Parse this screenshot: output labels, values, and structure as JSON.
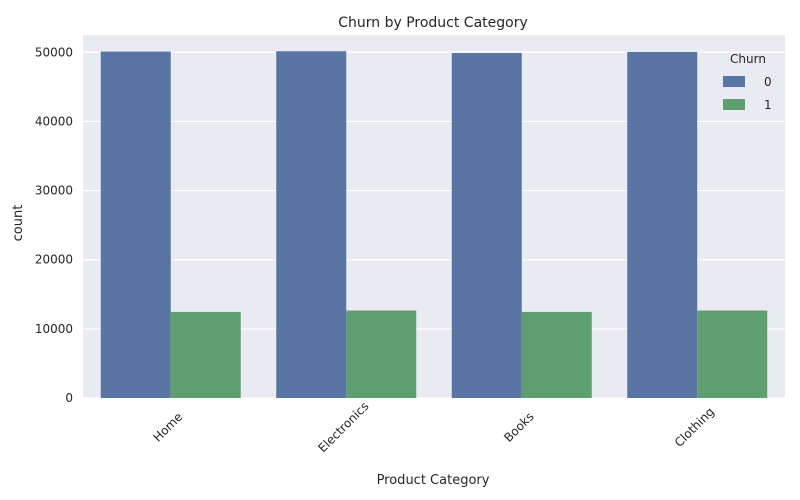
{
  "chart_data": {
    "type": "bar",
    "title": "Churn by Product Category",
    "xlabel": "Product Category",
    "ylabel": "count",
    "categories": [
      "Home",
      "Electronics",
      "Books",
      "Clothing"
    ],
    "yticks": [
      0,
      10000,
      20000,
      30000,
      40000,
      50000
    ],
    "ylim": [
      0,
      52500
    ],
    "grid": true,
    "legend_title": "Churn",
    "legend_placement": "top-right",
    "series": [
      {
        "name": "0",
        "color": "#5875A4",
        "values": [
          50100,
          50150,
          49900,
          50050
        ]
      },
      {
        "name": "1",
        "color": "#5F9E6E",
        "values": [
          12450,
          12650,
          12450,
          12650
        ]
      }
    ]
  }
}
